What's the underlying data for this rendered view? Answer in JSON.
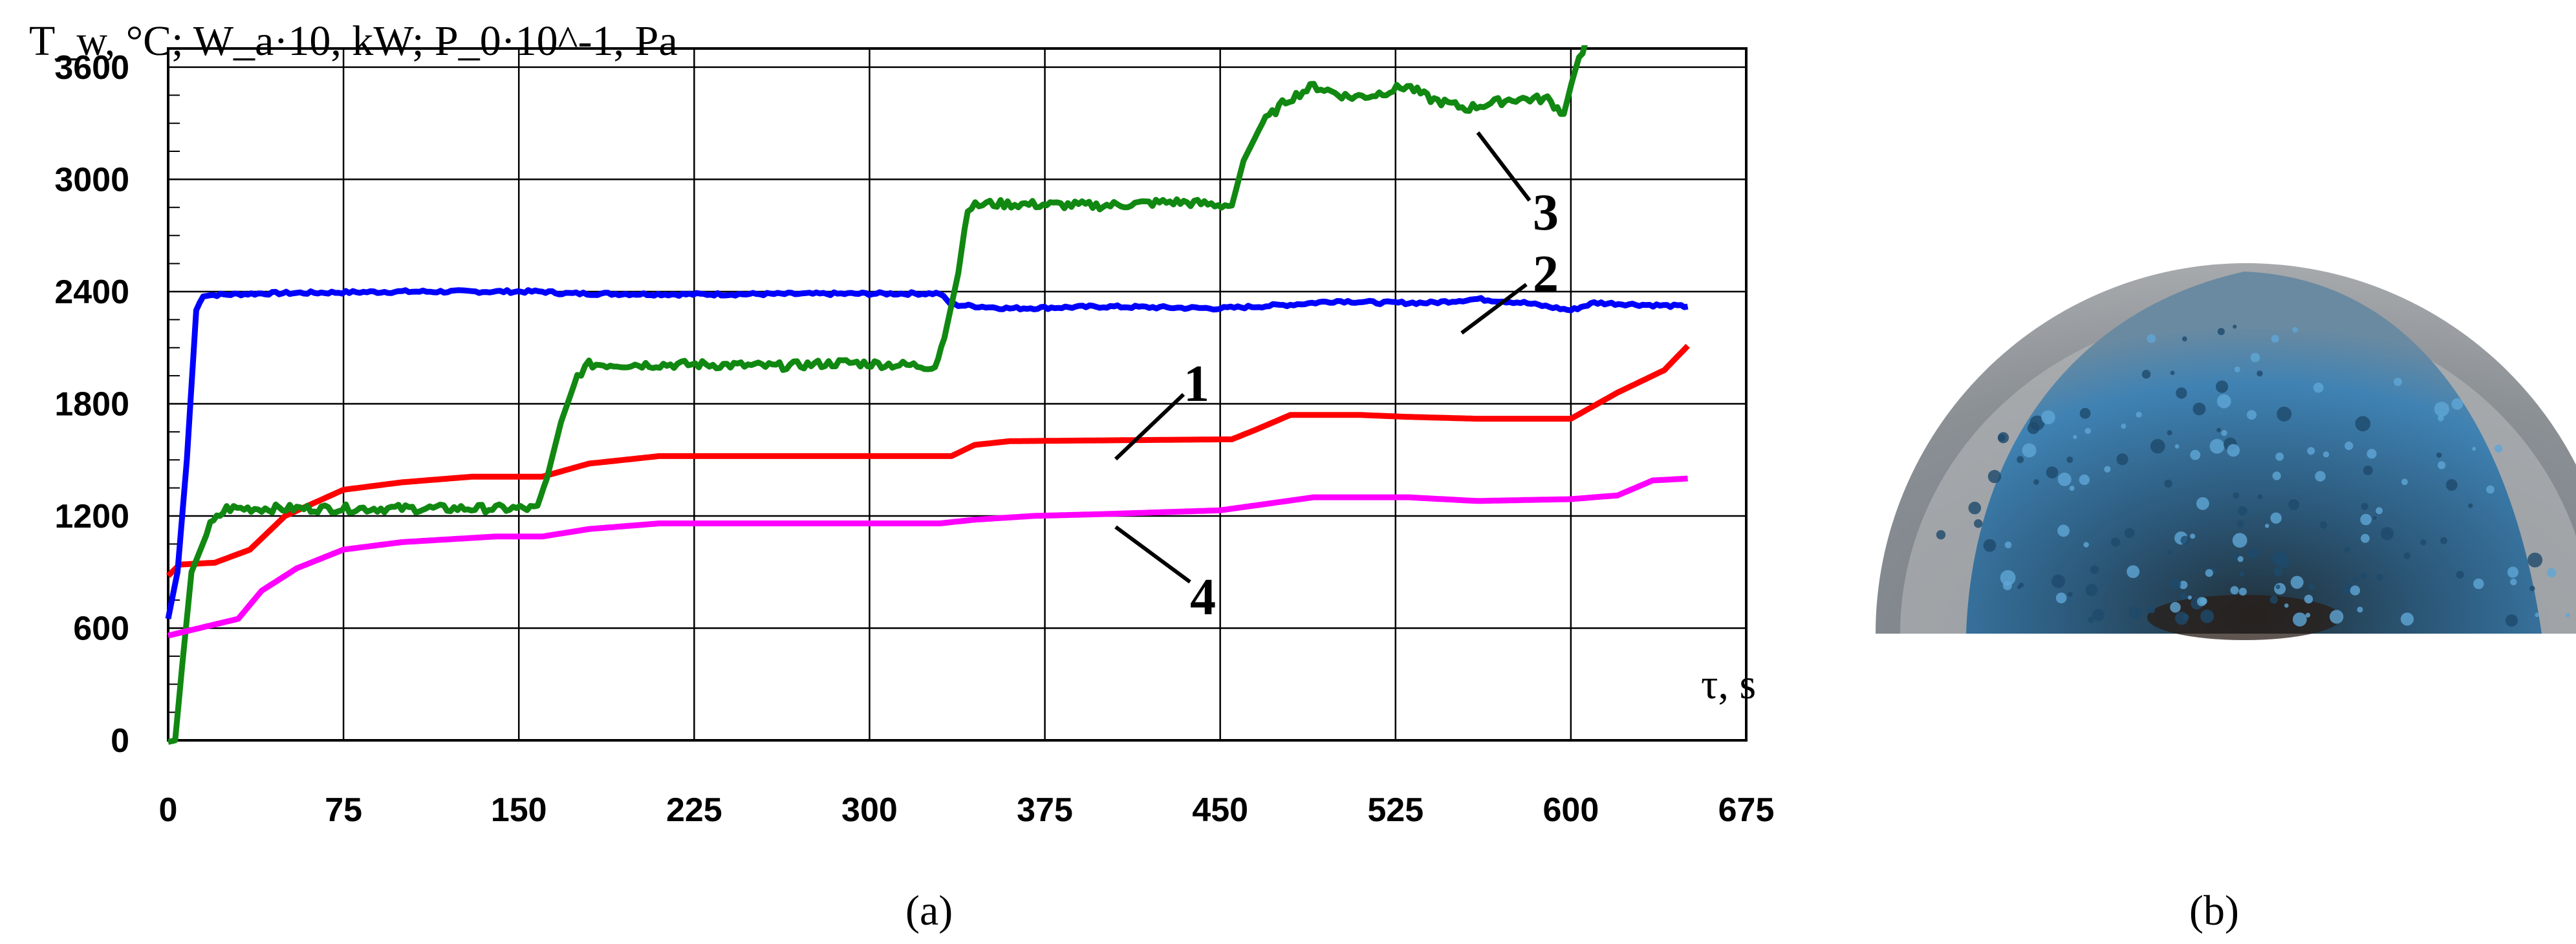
{
  "chart_data": {
    "type": "line",
    "ylabel": "T_w, °C; W_a·10, kW; P_0·10^-1, Pa",
    "xlabel": "τ, s",
    "x_ticks": [
      0,
      75,
      150,
      225,
      300,
      375,
      450,
      525,
      600,
      675
    ],
    "y_ticks": [
      0,
      600,
      1200,
      1800,
      2400,
      3000,
      3600
    ],
    "xlim": [
      0,
      675
    ],
    "ylim": [
      0,
      3700
    ],
    "grid": true,
    "series": [
      {
        "name": "1",
        "color": "#ff0000",
        "points": [
          [
            0,
            880
          ],
          [
            5,
            940
          ],
          [
            20,
            950
          ],
          [
            35,
            1020
          ],
          [
            50,
            1200
          ],
          [
            75,
            1340
          ],
          [
            100,
            1380
          ],
          [
            130,
            1410
          ],
          [
            160,
            1410
          ],
          [
            180,
            1480
          ],
          [
            210,
            1520
          ],
          [
            335,
            1520
          ],
          [
            345,
            1580
          ],
          [
            360,
            1600
          ],
          [
            455,
            1610
          ],
          [
            465,
            1660
          ],
          [
            480,
            1740
          ],
          [
            510,
            1740
          ],
          [
            530,
            1730
          ],
          [
            560,
            1720
          ],
          [
            600,
            1720
          ],
          [
            620,
            1860
          ],
          [
            640,
            1980
          ],
          [
            650,
            2110
          ]
        ]
      },
      {
        "name": "2",
        "color": "#0000ff",
        "points": [
          [
            0,
            650
          ],
          [
            4,
            900
          ],
          [
            8,
            1500
          ],
          [
            12,
            2300
          ],
          [
            15,
            2380
          ],
          [
            40,
            2390
          ],
          [
            100,
            2400
          ],
          [
            160,
            2400
          ],
          [
            170,
            2390
          ],
          [
            220,
            2385
          ],
          [
            330,
            2390
          ],
          [
            335,
            2330
          ],
          [
            360,
            2310
          ],
          [
            400,
            2320
          ],
          [
            450,
            2310
          ],
          [
            480,
            2330
          ],
          [
            500,
            2350
          ],
          [
            520,
            2340
          ],
          [
            540,
            2340
          ],
          [
            560,
            2360
          ],
          [
            580,
            2340
          ],
          [
            600,
            2300
          ],
          [
            610,
            2340
          ],
          [
            650,
            2320
          ]
        ]
      },
      {
        "name": "3",
        "color": "#118811",
        "points": [
          [
            0,
            0
          ],
          [
            3,
            0
          ],
          [
            6,
            400
          ],
          [
            10,
            900
          ],
          [
            18,
            1150
          ],
          [
            25,
            1240
          ],
          [
            100,
            1240
          ],
          [
            155,
            1240
          ],
          [
            158,
            1240
          ],
          [
            162,
            1400
          ],
          [
            168,
            1700
          ],
          [
            175,
            1950
          ],
          [
            180,
            2010
          ],
          [
            230,
            2010
          ],
          [
            260,
            2000
          ],
          [
            290,
            2020
          ],
          [
            328,
            2000
          ],
          [
            332,
            2150
          ],
          [
            338,
            2500
          ],
          [
            342,
            2850
          ],
          [
            350,
            2870
          ],
          [
            400,
            2860
          ],
          [
            430,
            2880
          ],
          [
            455,
            2860
          ],
          [
            460,
            3100
          ],
          [
            468,
            3300
          ],
          [
            478,
            3420
          ],
          [
            490,
            3500
          ],
          [
            505,
            3440
          ],
          [
            515,
            3450
          ],
          [
            530,
            3500
          ],
          [
            540,
            3430
          ],
          [
            555,
            3380
          ],
          [
            575,
            3430
          ],
          [
            590,
            3430
          ],
          [
            597,
            3350
          ],
          [
            602,
            3600
          ],
          [
            608,
            3780
          ],
          [
            625,
            3760
          ],
          [
            650,
            3760
          ]
        ]
      },
      {
        "name": "4",
        "color": "#ff00ff",
        "points": [
          [
            0,
            560
          ],
          [
            10,
            590
          ],
          [
            30,
            650
          ],
          [
            40,
            800
          ],
          [
            55,
            920
          ],
          [
            75,
            1020
          ],
          [
            100,
            1060
          ],
          [
            140,
            1090
          ],
          [
            160,
            1090
          ],
          [
            180,
            1130
          ],
          [
            210,
            1160
          ],
          [
            330,
            1160
          ],
          [
            345,
            1180
          ],
          [
            370,
            1200
          ],
          [
            400,
            1210
          ],
          [
            450,
            1230
          ],
          [
            490,
            1300
          ],
          [
            530,
            1300
          ],
          [
            560,
            1280
          ],
          [
            600,
            1290
          ],
          [
            620,
            1310
          ],
          [
            635,
            1390
          ],
          [
            650,
            1400
          ]
        ]
      }
    ],
    "curve_labels": [
      "1",
      "2",
      "3",
      "4"
    ],
    "panel_labels": [
      "(a)",
      "(b)"
    ]
  }
}
